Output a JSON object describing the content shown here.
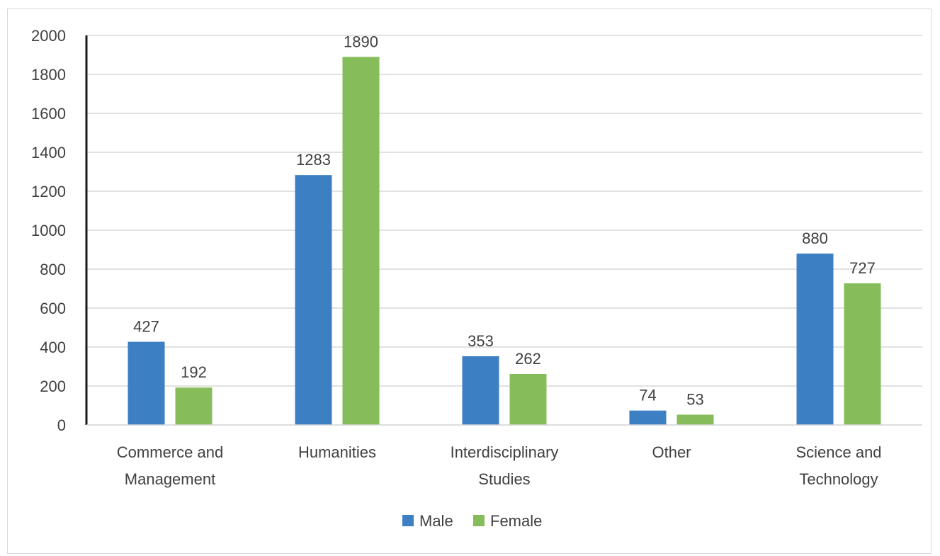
{
  "chart_data": {
    "type": "bar",
    "title": "",
    "xlabel": "",
    "ylabel": "",
    "ylim": [
      0,
      2000
    ],
    "yticks": [
      0,
      200,
      400,
      600,
      800,
      1000,
      1200,
      1400,
      1600,
      1800,
      2000
    ],
    "grid": true,
    "legend_position": "bottom",
    "categories": [
      [
        "Commerce and",
        "Management"
      ],
      [
        "Humanities"
      ],
      [
        "Interdisciplinary",
        "Studies"
      ],
      [
        "Other"
      ],
      [
        "Science and",
        "Technology"
      ]
    ],
    "series": [
      {
        "name": "Male",
        "color": "#3c7fc3",
        "values": [
          427,
          1283,
          353,
          74,
          880
        ]
      },
      {
        "name": "Female",
        "color": "#86bd5a",
        "values": [
          192,
          1890,
          262,
          53,
          727
        ]
      }
    ]
  }
}
